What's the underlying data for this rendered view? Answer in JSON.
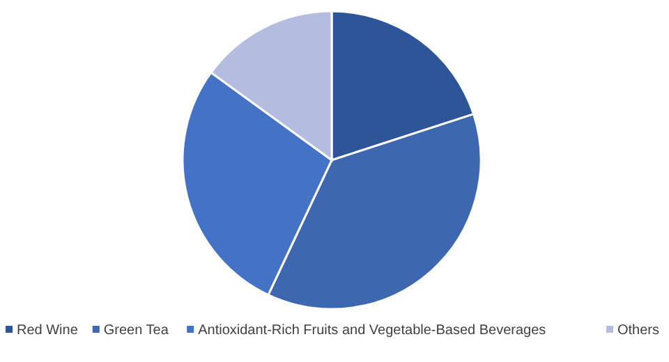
{
  "chart_data": {
    "type": "pie",
    "categories": [
      "Red Wine",
      "Green Tea",
      "Antioxidant-Rich Fruits and Vegetable-Based Beverages",
      "Others"
    ],
    "values": [
      20,
      37,
      28,
      15
    ],
    "colors": [
      "#2e5597",
      "#3d68b0",
      "#4472c4",
      "#b4bde0"
    ],
    "legend": "bottom"
  }
}
